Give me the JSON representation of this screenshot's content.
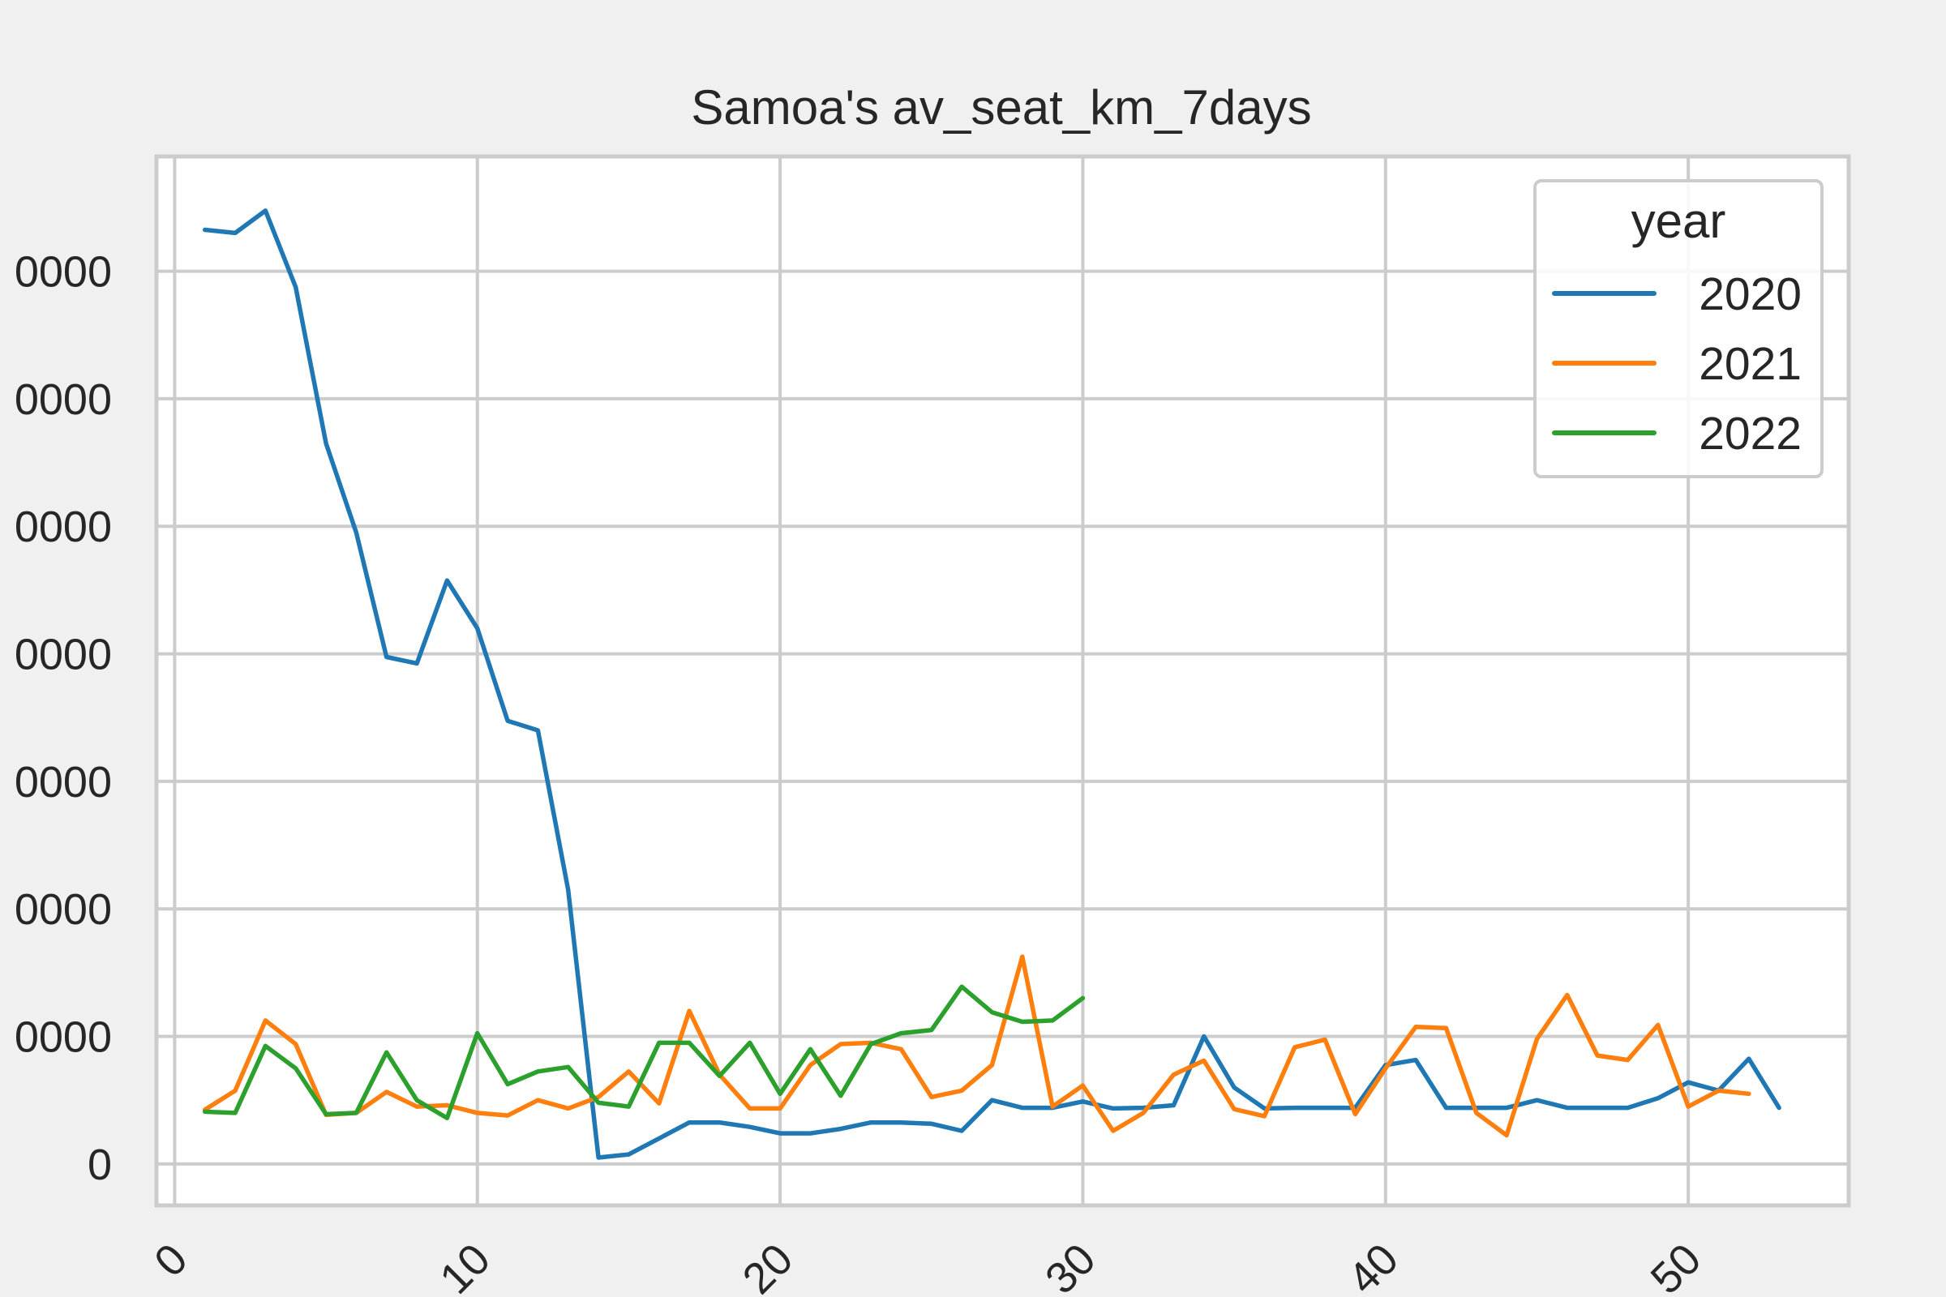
{
  "chart_data": {
    "type": "line",
    "title": "Samoa's av_seat_km_7days",
    "xlabel": "",
    "ylabel": "",
    "xlim": [
      -0.6,
      55.3
    ],
    "ylim": [
      -6500,
      158000
    ],
    "x_ticks": [
      0,
      10,
      20,
      30,
      40,
      50
    ],
    "x_tick_labels": [
      "0",
      "10",
      "20",
      "30",
      "40",
      "50"
    ],
    "y_ticks": [
      0,
      20000,
      40000,
      60000,
      80000,
      100000,
      120000,
      140000
    ],
    "y_tick_labels": [
      "0",
      "0000",
      "0000",
      "0000",
      "0000",
      "0000",
      "0000",
      "0000"
    ],
    "grid": true,
    "legend": {
      "title": "year",
      "placement": "top-right"
    },
    "series": [
      {
        "name": "2020",
        "color": "#1f77b4",
        "x": [
          1,
          2,
          3,
          4,
          5,
          6,
          7,
          8,
          9,
          10,
          11,
          12,
          13,
          14,
          15,
          16,
          17,
          18,
          19,
          20,
          21,
          22,
          23,
          24,
          25,
          26,
          27,
          28,
          29,
          30,
          31,
          32,
          33,
          34,
          35,
          36,
          37,
          38,
          39,
          40,
          41,
          42,
          43,
          44,
          45,
          46,
          47,
          48,
          49,
          50,
          51,
          52,
          53
        ],
        "y": [
          146500,
          146000,
          149500,
          137500,
          113000,
          99000,
          79500,
          78500,
          91500,
          84000,
          69500,
          68000,
          43000,
          1000,
          1500,
          4000,
          6500,
          6500,
          5800,
          4800,
          4800,
          5500,
          6500,
          6500,
          6300,
          5200,
          10000,
          8800,
          8800,
          9800,
          8700,
          8800,
          9200,
          20000,
          12000,
          8700,
          8800,
          8800,
          8800,
          15500,
          16300,
          8800,
          8800,
          8800,
          10000,
          8800,
          8800,
          8800,
          10300,
          12800,
          11500,
          16500,
          8800
        ]
      },
      {
        "name": "2021",
        "color": "#ff7f0e",
        "x": [
          1,
          2,
          3,
          4,
          5,
          6,
          7,
          8,
          9,
          10,
          11,
          12,
          13,
          14,
          15,
          16,
          17,
          18,
          19,
          20,
          21,
          22,
          23,
          24,
          25,
          26,
          27,
          28,
          29,
          30,
          31,
          32,
          33,
          34,
          35,
          36,
          37,
          38,
          39,
          40,
          41,
          42,
          43,
          44,
          45,
          46,
          47,
          48,
          49,
          50,
          51,
          52
        ],
        "y": [
          8500,
          11500,
          22500,
          18800,
          7700,
          8000,
          11300,
          9000,
          9200,
          8000,
          7600,
          10000,
          8700,
          10500,
          14500,
          9500,
          24000,
          14000,
          8700,
          8700,
          15500,
          18800,
          19000,
          18000,
          10500,
          11500,
          15500,
          32500,
          9000,
          12300,
          5200,
          8000,
          14000,
          16200,
          8600,
          7500,
          18300,
          19500,
          7800,
          15000,
          21500,
          21300,
          8000,
          4500,
          19600,
          26500,
          17000,
          16300,
          21800,
          9000,
          11500,
          11000
        ]
      },
      {
        "name": "2022",
        "color": "#2ca02c",
        "x": [
          1,
          2,
          3,
          4,
          5,
          6,
          7,
          8,
          9,
          10,
          11,
          12,
          13,
          14,
          15,
          16,
          17,
          18,
          19,
          20,
          21,
          22,
          23,
          24,
          25,
          26,
          27,
          28,
          29,
          30
        ],
        "y": [
          8200,
          8000,
          18500,
          15000,
          7800,
          8000,
          17500,
          10000,
          7200,
          20500,
          12500,
          14500,
          15200,
          9600,
          9000,
          19000,
          19000,
          13800,
          19000,
          11000,
          18000,
          10700,
          18800,
          20500,
          21000,
          27800,
          23800,
          22300,
          22500,
          26000
        ]
      }
    ]
  }
}
